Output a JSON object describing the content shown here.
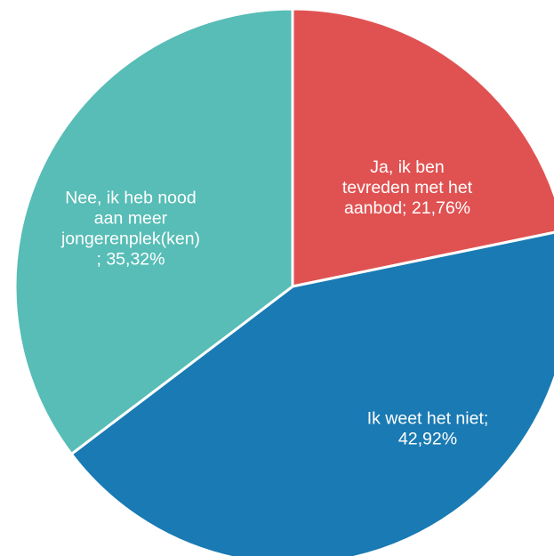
{
  "chart_data": {
    "type": "pie",
    "title": "",
    "slices": [
      {
        "label_lines": [
          "Ja, ik ben",
          "tevreden met het",
          "aanbod; 21,76%"
        ],
        "value": 21.76,
        "color": "#e05252"
      },
      {
        "label_lines": [
          "Ik weet het niet;",
          "42,92%"
        ],
        "value": 42.92,
        "color": "#1a7ab3"
      },
      {
        "label_lines": [
          "Nee, ik heb nood",
          "aan meer",
          "jongerenplek(ken)",
          "; 35,32%"
        ],
        "value": 35.32,
        "color": "#57bdb6"
      }
    ]
  }
}
